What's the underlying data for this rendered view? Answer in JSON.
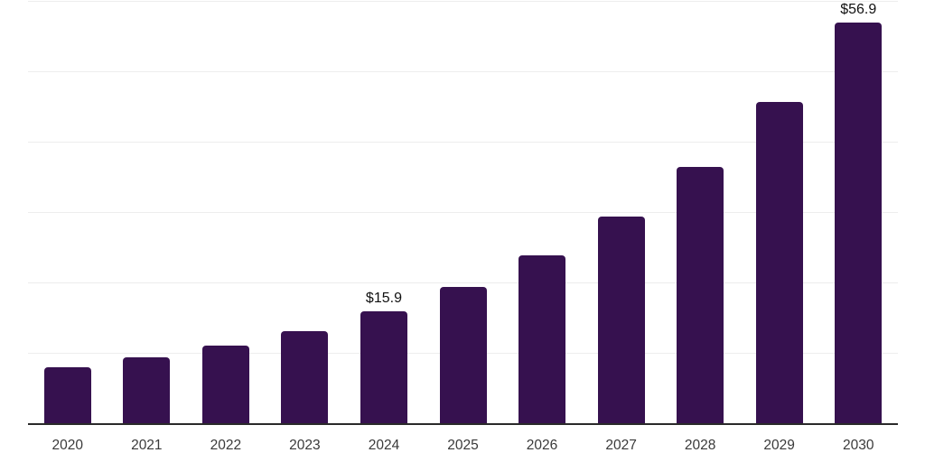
{
  "chart_data": {
    "type": "bar",
    "title": "",
    "xlabel": "",
    "ylabel": "",
    "categories": [
      "2020",
      "2021",
      "2022",
      "2023",
      "2024",
      "2025",
      "2026",
      "2027",
      "2028",
      "2029",
      "2030"
    ],
    "values": [
      7.9,
      9.3,
      11.0,
      13.1,
      15.9,
      19.3,
      23.8,
      29.3,
      36.4,
      45.6,
      56.9
    ],
    "data_labels": [
      null,
      null,
      null,
      null,
      "$15.9",
      null,
      null,
      null,
      null,
      null,
      "$56.9"
    ],
    "ylim": [
      0,
      60
    ],
    "gridline_step": 10,
    "grid": true,
    "legend": false,
    "y_axis_labels_shown": false,
    "colors": {
      "bar": "#36114F",
      "axis_line": "#2a2a2a",
      "gridline": "#ededed",
      "tick_label": "#3a3a3a",
      "data_label": "#111111",
      "background": "#ffffff"
    }
  }
}
